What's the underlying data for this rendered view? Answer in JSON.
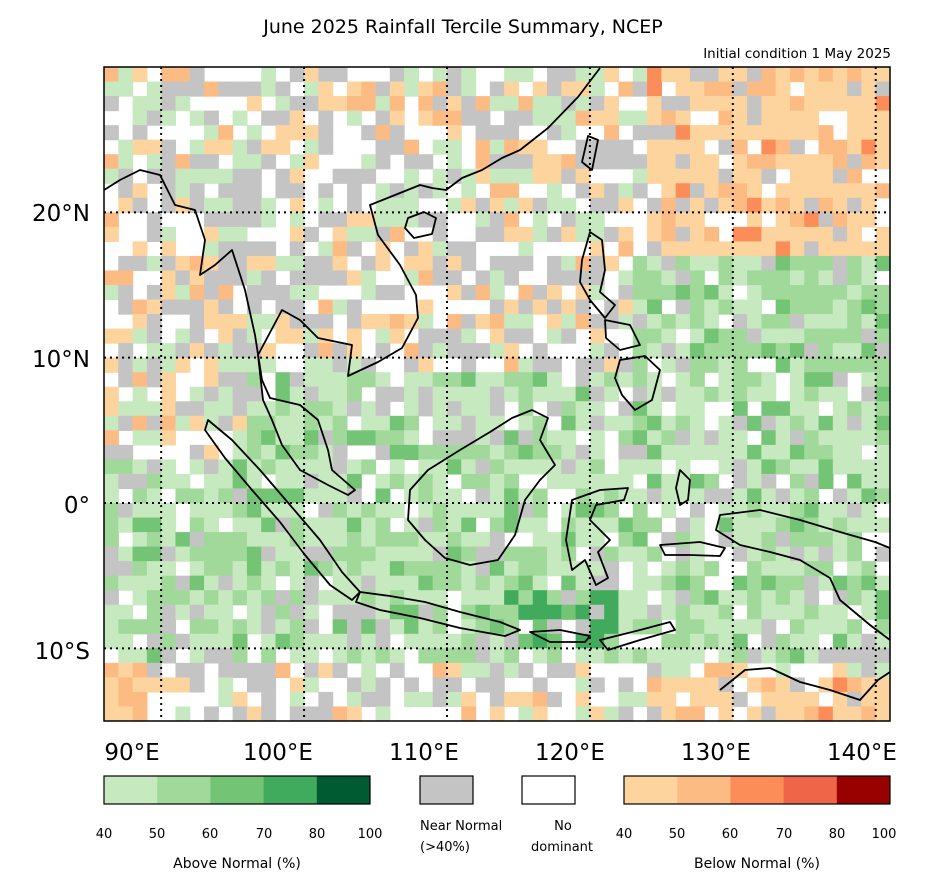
{
  "title": "June 2025 Rainfall Tercile Summary, NCEP",
  "subtitle": "Initial condition 1 May 2025",
  "map": {
    "lon_range": [
      86,
      141
    ],
    "lat_range": [
      -15,
      30
    ],
    "lon_ticks": [
      "90°E",
      "100°E",
      "110°E",
      "120°E",
      "130°E",
      "140°E"
    ],
    "lat_ticks": [
      "20°N",
      "10°N",
      "0°",
      "10°S"
    ],
    "gridlines": "dotted"
  },
  "legend": {
    "above": {
      "caption": "Above Normal (%)",
      "ticks": [
        "40",
        "50",
        "60",
        "70",
        "80",
        "100"
      ],
      "colors": [
        "#c7e9c0",
        "#a1d99b",
        "#74c476",
        "#41ab5d",
        "#005a32"
      ]
    },
    "near": {
      "caption_1": "Near Normal",
      "caption_2": "(>40%)",
      "color": "#c4c4c4"
    },
    "none": {
      "caption_1": "No",
      "caption_2": "dominant",
      "color": "#ffffff"
    },
    "below": {
      "caption": "Below Normal (%)",
      "ticks": [
        "40",
        "50",
        "60",
        "70",
        "80",
        "100"
      ],
      "colors": [
        "#fdd49e",
        "#fdbb84",
        "#fc8d59",
        "#ef6548",
        "#990000"
      ]
    }
  }
}
